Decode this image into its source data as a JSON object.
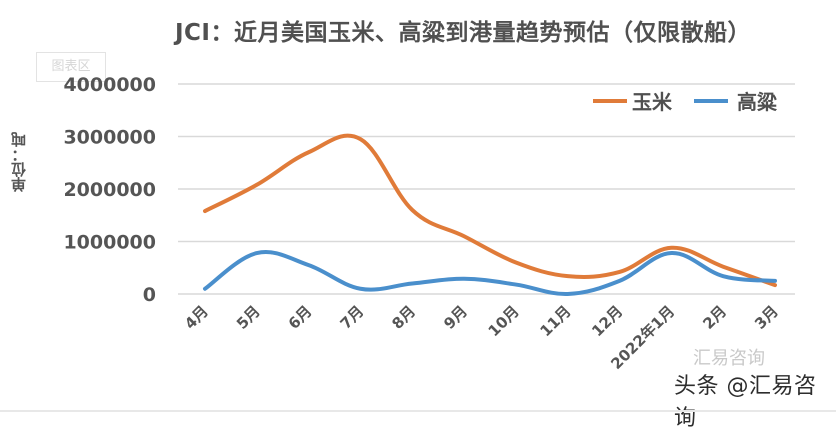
{
  "title": "JCI：近月美国玉米、高粱到港量趋势预估（仅限散船）",
  "chart_area_tag": "图表区",
  "y_unit_label": "单位：吨",
  "legend": {
    "items": [
      {
        "label": "玉米",
        "color": "#E07B39"
      },
      {
        "label": "高粱",
        "color": "#4A8FCC"
      }
    ]
  },
  "watermark": {
    "text": "头条 @汇易咨询",
    "ghost_text": "汇易咨询"
  },
  "chart_data": {
    "type": "line",
    "title": "JCI：近月美国玉米、高粱到港量趋势预估（仅限散船）",
    "xlabel": "",
    "ylabel": "单位：吨",
    "ylim": [
      0,
      4000000
    ],
    "yticks": [
      "0",
      "1000000",
      "2000000",
      "3000000",
      "4000000"
    ],
    "grid": true,
    "legend_position": "top-right",
    "smooth": true,
    "categories": [
      "4月",
      "5月",
      "6月",
      "7月",
      "8月",
      "9月",
      "10月",
      "11月",
      "12月",
      "2022年1月",
      "2月",
      "3月"
    ],
    "series": [
      {
        "name": "玉米",
        "color": "#E07B39",
        "values": [
          1580000,
          2080000,
          2700000,
          2950000,
          1600000,
          1100000,
          600000,
          340000,
          420000,
          880000,
          520000,
          170000
        ]
      },
      {
        "name": "高粱",
        "color": "#4A8FCC",
        "values": [
          100000,
          780000,
          550000,
          100000,
          200000,
          290000,
          180000,
          0,
          250000,
          780000,
          340000,
          250000
        ]
      }
    ]
  }
}
